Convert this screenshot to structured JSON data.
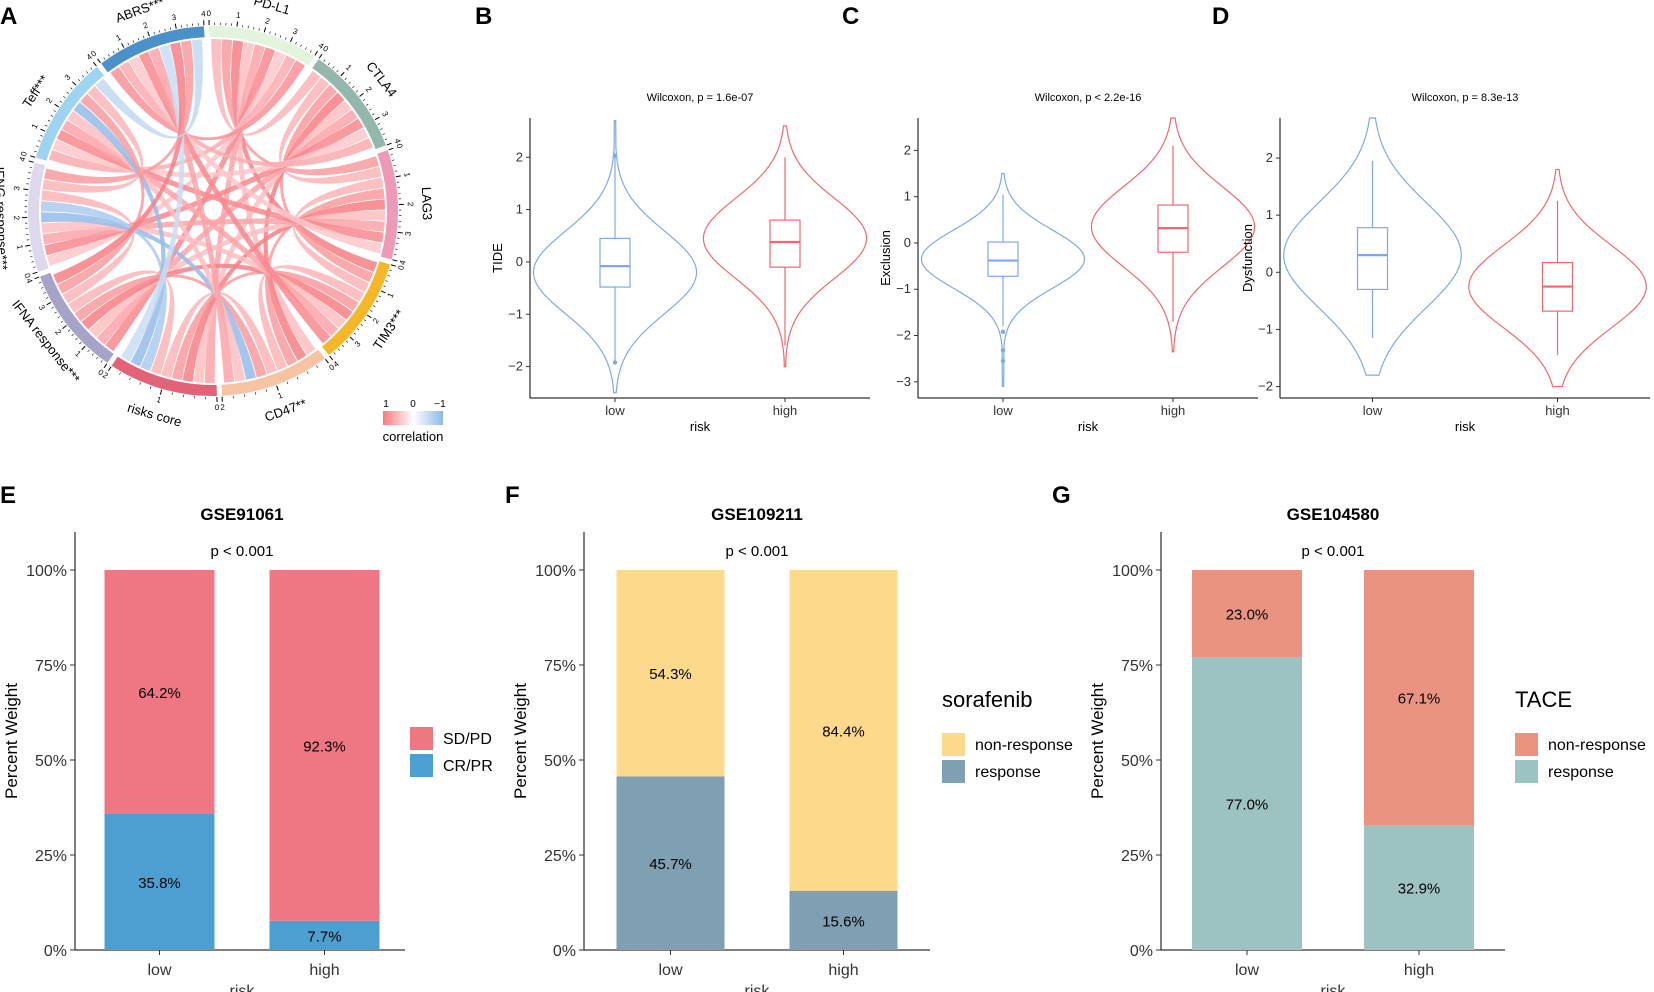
{
  "panels": {
    "A": "A",
    "B": "B",
    "C": "C",
    "D": "D",
    "E": "E",
    "F": "F",
    "G": "G"
  },
  "chart_data": [
    {
      "type": "chord",
      "panel": "A",
      "sectors": [
        {
          "name": "PD-L1",
          "label": "PD-L1",
          "color": "#e3f4dd",
          "scale_max": 4
        },
        {
          "name": "CTLA4",
          "label": "CTLA4",
          "color": "#93b6ad",
          "scale_max": 4
        },
        {
          "name": "LAG3",
          "label": "LAG3",
          "color": "#ec9ab8",
          "scale_max": 4
        },
        {
          "name": "TIM3",
          "label": "TIM3***",
          "color": "#f4b728",
          "scale_max": 4
        },
        {
          "name": "CD47",
          "label": "CD47**",
          "color": "#f6c3a3",
          "scale_max": 2
        },
        {
          "name": "riskscore",
          "label": "risks core",
          "color": "#e26277",
          "scale_max": 2
        },
        {
          "name": "IFNA",
          "label": "IFNA response***",
          "color": "#a6a3c8",
          "scale_max": 4
        },
        {
          "name": "IFNG",
          "label": "IFNG response***",
          "color": "#ddd8ec",
          "scale_max": 4
        },
        {
          "name": "Teff",
          "label": "Teff***",
          "color": "#9ed4f2",
          "scale_max": 4
        },
        {
          "name": "ABRS",
          "label": "ABRS***",
          "color": "#4a90c9",
          "scale_max": 4
        }
      ],
      "legend": {
        "title": "correlation",
        "ticks": [
          "1",
          "0",
          "−1"
        ],
        "colors": [
          "#f7787f",
          "#ffffff",
          "#8fb8e8"
        ]
      }
    },
    {
      "type": "violin",
      "panel": "B",
      "subtitle": "Wilcoxon, p = 1.6e-07",
      "xlabel": "risk",
      "ylabel": "TIDE",
      "ylim": [
        -2.6,
        2.75
      ],
      "yticks": [
        -2,
        -1,
        0,
        1,
        2
      ],
      "categories": [
        "low",
        "high"
      ],
      "colors": [
        "#7fa9e6",
        "#f0686b"
      ],
      "groups": [
        {
          "name": "low",
          "vmin": -2.5,
          "vmax": 2.7,
          "q1": -0.48,
          "median": -0.08,
          "q3": 0.45,
          "wlo": -1.9,
          "whi": 2.0,
          "outliers": [
            2.03,
            -1.92
          ],
          "mode": -0.2
        },
        {
          "name": "high",
          "vmin": -2.0,
          "vmax": 2.6,
          "q1": -0.1,
          "median": 0.38,
          "q3": 0.8,
          "wlo": -1.6,
          "whi": 2.0,
          "outliers": [],
          "mode": 0.45
        }
      ]
    },
    {
      "type": "violin",
      "panel": "C",
      "subtitle": "Wilcoxon, p < 2.2e-16",
      "xlabel": "risk",
      "ylabel": "Exclusion",
      "ylim": [
        -3.35,
        2.7
      ],
      "yticks": [
        -3,
        -2,
        -1,
        0,
        1,
        2
      ],
      "categories": [
        "low",
        "high"
      ],
      "colors": [
        "#7fa9e6",
        "#f0686b"
      ],
      "groups": [
        {
          "name": "low",
          "vmin": -3.1,
          "vmax": 1.5,
          "q1": -0.72,
          "median": -0.38,
          "q3": 0.02,
          "wlo": -1.8,
          "whi": 1.05,
          "outliers": [
            -1.92,
            -2.32,
            -2.55
          ],
          "mode": -0.35
        },
        {
          "name": "high",
          "vmin": -2.35,
          "vmax": 2.7,
          "q1": -0.2,
          "median": 0.32,
          "q3": 0.82,
          "wlo": -1.7,
          "whi": 2.1,
          "outliers": [],
          "mode": 0.35
        }
      ]
    },
    {
      "type": "violin",
      "panel": "D",
      "subtitle": "Wilcoxon, p = 8.3e-13",
      "xlabel": "risk",
      "ylabel": "Dysfunction",
      "ylim": [
        -2.2,
        2.7
      ],
      "yticks": [
        -2,
        -1,
        0,
        1,
        2
      ],
      "categories": [
        "low",
        "high"
      ],
      "colors": [
        "#7fa9e6",
        "#f0686b"
      ],
      "groups": [
        {
          "name": "low",
          "vmin": -1.8,
          "vmax": 2.7,
          "q1": -0.3,
          "median": 0.3,
          "q3": 0.78,
          "wlo": -1.15,
          "whi": 1.95,
          "outliers": [],
          "mode": 0.3
        },
        {
          "name": "high",
          "vmin": -2.0,
          "vmax": 1.8,
          "q1": -0.68,
          "median": -0.25,
          "q3": 0.17,
          "wlo": -1.45,
          "whi": 1.25,
          "outliers": [],
          "mode": -0.25
        }
      ]
    },
    {
      "type": "bar",
      "panel": "E",
      "stacked": true,
      "title": "GSE91061",
      "annotation": "p < 0.001",
      "xlabel": "risk",
      "ylabel": "Percent Weight",
      "ylim": [
        0,
        1.1
      ],
      "yticks": [
        "0%",
        "25%",
        "50%",
        "75%",
        "100%"
      ],
      "categories": [
        "low",
        "high"
      ],
      "legend_title": "",
      "series": [
        {
          "name": "CR/PR",
          "color": "#4d9fd2",
          "values": [
            0.358,
            0.077
          ],
          "labels": [
            "35.8%",
            "7.7%"
          ]
        },
        {
          "name": "SD/PD",
          "color": "#ef7683",
          "values": [
            0.642,
            0.923
          ],
          "labels": [
            "64.2%",
            "92.3%"
          ]
        }
      ]
    },
    {
      "type": "bar",
      "panel": "F",
      "stacked": true,
      "title": "GSE109211",
      "annotation": "p < 0.001",
      "xlabel": "risk",
      "ylabel": "Percent Weight",
      "ylim": [
        0,
        1.1
      ],
      "yticks": [
        "0%",
        "25%",
        "50%",
        "75%",
        "100%"
      ],
      "categories": [
        "low",
        "high"
      ],
      "legend_title": "sorafenib",
      "series": [
        {
          "name": "response",
          "color": "#7f9fb3",
          "values": [
            0.457,
            0.156
          ],
          "labels": [
            "45.7%",
            "15.6%"
          ]
        },
        {
          "name": "non-response",
          "color": "#fcd98b",
          "values": [
            0.543,
            0.844
          ],
          "labels": [
            "54.3%",
            "84.4%"
          ]
        }
      ]
    },
    {
      "type": "bar",
      "panel": "G",
      "stacked": true,
      "title": "GSE104580",
      "annotation": "p < 0.001",
      "xlabel": "risk",
      "ylabel": "Percent Weight",
      "ylim": [
        0,
        1.1
      ],
      "yticks": [
        "0%",
        "25%",
        "50%",
        "75%",
        "100%"
      ],
      "categories": [
        "low",
        "high"
      ],
      "legend_title": "TACE",
      "series": [
        {
          "name": "response",
          "color": "#9cc3c1",
          "values": [
            0.77,
            0.329
          ],
          "labels": [
            "77.0%",
            "32.9%"
          ]
        },
        {
          "name": "non-response",
          "color": "#eb9381",
          "values": [
            0.23,
            0.671
          ],
          "labels": [
            "23.0%",
            "67.1%"
          ]
        }
      ]
    }
  ]
}
